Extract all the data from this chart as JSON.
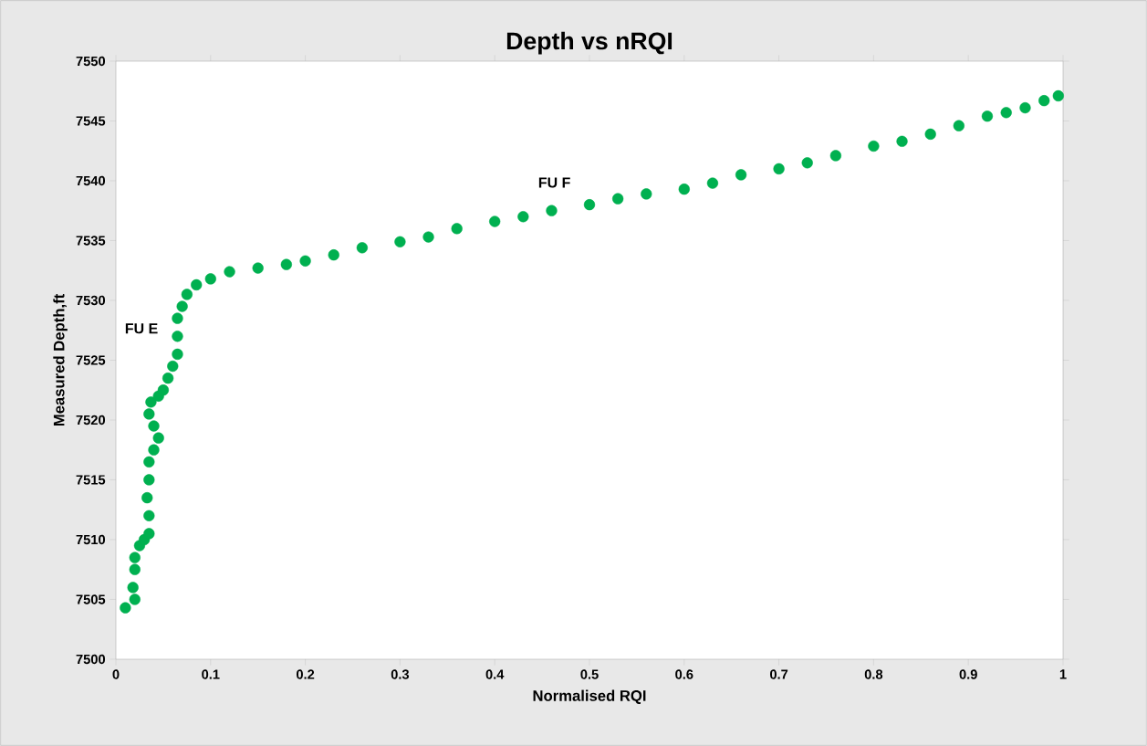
{
  "chart_data": {
    "type": "scatter",
    "title": "Depth vs nRQI",
    "xlabel": "Normalised RQI",
    "ylabel": "Measured  Depth,ft",
    "xlim": [
      0,
      1
    ],
    "xticks": [
      0,
      0.1,
      0.2,
      0.3,
      0.4,
      0.5,
      0.6,
      0.7,
      0.8,
      0.9,
      1
    ],
    "ylim": [
      7500,
      7550
    ],
    "yticks": [
      7500,
      7505,
      7510,
      7515,
      7520,
      7525,
      7530,
      7535,
      7540,
      7545,
      7550
    ],
    "grid": false,
    "marker": "circle",
    "annotations": [
      "FU E",
      "FU F"
    ],
    "series": [
      {
        "color": "#00b050",
        "x": [
          0.01,
          0.02,
          0.018,
          0.02,
          0.02,
          0.025,
          0.03,
          0.035,
          0.035,
          0.033,
          0.035,
          0.035,
          0.04,
          0.045,
          0.04,
          0.035,
          0.037,
          0.045,
          0.05,
          0.055,
          0.06,
          0.065,
          0.065,
          0.065,
          0.07,
          0.075,
          0.085,
          0.1,
          0.12,
          0.15,
          0.18,
          0.2,
          0.23,
          0.26,
          0.3,
          0.33,
          0.36,
          0.4,
          0.43,
          0.46,
          0.5,
          0.53,
          0.56,
          0.6,
          0.63,
          0.66,
          0.7,
          0.73,
          0.76,
          0.8,
          0.83,
          0.86,
          0.89,
          0.92,
          0.94,
          0.96,
          0.98,
          0.995
        ],
        "values": [
          7504.3,
          7505,
          7506,
          7507.5,
          7508.5,
          7509.5,
          7510,
          7510.5,
          7512,
          7513.5,
          7515,
          7516.5,
          7517.5,
          7518.5,
          7519.5,
          7520.5,
          7521.5,
          7522,
          7522.5,
          7523.5,
          7524.5,
          7525.5,
          7527,
          7528.5,
          7529.5,
          7530.5,
          7531.3,
          7531.8,
          7532.4,
          7532.7,
          7533,
          7533.3,
          7533.8,
          7534.4,
          7534.9,
          7535.3,
          7536,
          7536.6,
          7537,
          7537.5,
          7538,
          7538.5,
          7538.9,
          7539.3,
          7539.8,
          7540.5,
          7541,
          7541.5,
          7542.1,
          7542.9,
          7543.3,
          7543.9,
          7544.6,
          7545.4,
          7545.7,
          7546.1,
          7546.7,
          7547.1
        ]
      }
    ]
  }
}
